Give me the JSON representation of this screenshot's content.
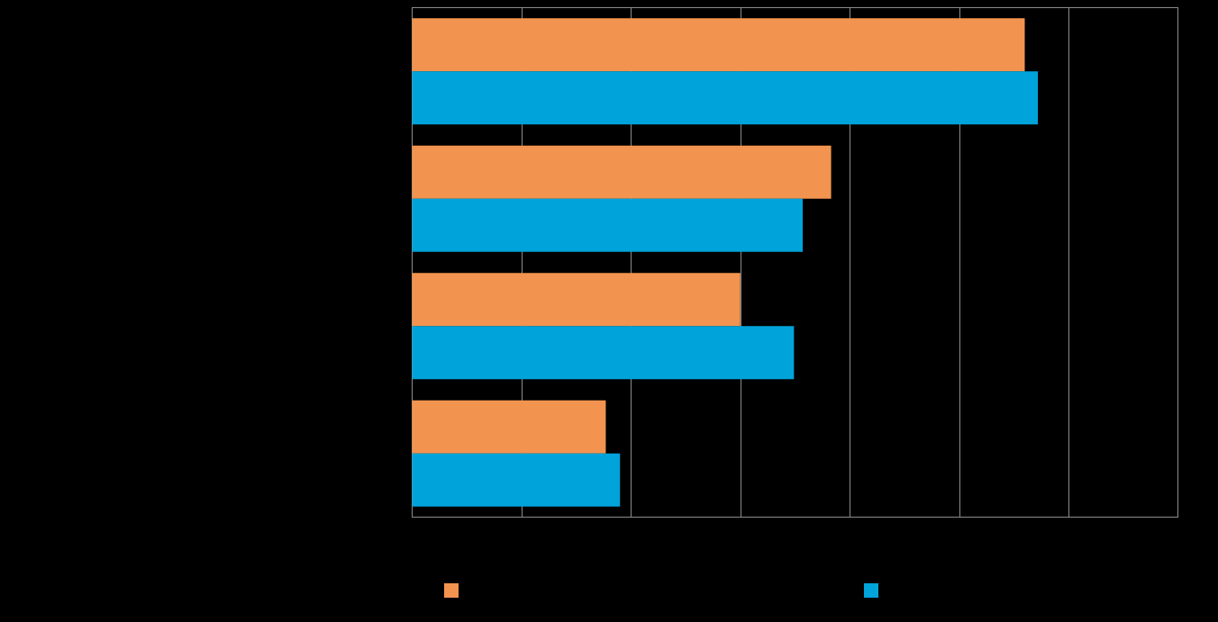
{
  "chart_data": {
    "type": "bar",
    "orientation": "horizontal",
    "categories": [
      "",
      "",
      "",
      ""
    ],
    "series": [
      {
        "name": "",
        "color": "#F2944F",
        "values": [
          5.6,
          3.83,
          3.0,
          1.77
        ]
      },
      {
        "name": "",
        "color": "#00A3DA",
        "values": [
          5.72,
          3.57,
          3.49,
          1.9
        ]
      }
    ],
    "xlim": [
      0,
      7
    ],
    "x_gridlines": [
      1,
      2,
      3,
      4,
      5,
      6
    ],
    "grid": true,
    "legend_position": "bottom",
    "background": "#000000",
    "gridline_color": "#8C8C8C"
  }
}
